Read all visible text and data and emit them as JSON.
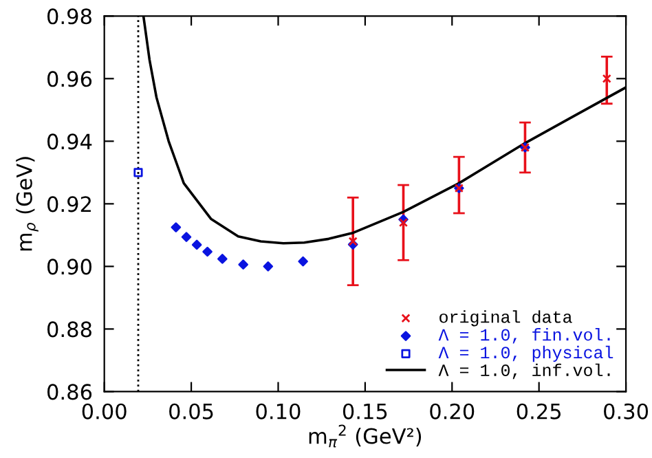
{
  "chart_data": {
    "type": "scatter",
    "xlabel": "m$_{π}$$^{2}$ (GeV²)",
    "ylabel": "m$_{ρ}$ (GeV)",
    "xlim": [
      0.0,
      0.3
    ],
    "ylim": [
      0.86,
      0.98
    ],
    "xticks": [
      {
        "value": 0.0,
        "label": "0.00"
      },
      {
        "value": 0.05,
        "label": "0.05"
      },
      {
        "value": 0.1,
        "label": "0.10"
      },
      {
        "value": 0.15,
        "label": "0.15"
      },
      {
        "value": 0.2,
        "label": "0.20"
      },
      {
        "value": 0.25,
        "label": "0.25"
      },
      {
        "value": 0.3,
        "label": "0.30"
      }
    ],
    "yticks": [
      {
        "value": 0.86,
        "label": "0.86"
      },
      {
        "value": 0.88,
        "label": "0.88"
      },
      {
        "value": 0.9,
        "label": "0.90"
      },
      {
        "value": 0.92,
        "label": "0.92"
      },
      {
        "value": 0.94,
        "label": "0.94"
      },
      {
        "value": 0.96,
        "label": "0.96"
      },
      {
        "value": 0.98,
        "label": "0.98"
      }
    ],
    "grid": false,
    "legend": "bottom right",
    "ref_lines": [
      {
        "axis": "x",
        "value": 0.0195,
        "color": "#000000",
        "line_style": "dotted"
      }
    ],
    "series": [
      {
        "name": "original data",
        "marker": "cross",
        "color": "#e8101a",
        "x": [
          0.143,
          0.172,
          0.204,
          0.242,
          0.289
        ],
        "values": [
          0.908,
          0.914,
          0.925,
          0.938,
          0.96
        ],
        "errors": [
          [
            0.894,
            0.922
          ],
          [
            0.902,
            0.926
          ],
          [
            0.917,
            0.935
          ],
          [
            0.93,
            0.946
          ],
          [
            0.952,
            0.967
          ]
        ]
      },
      {
        "name": "Λ = 1.0, fin.vol.",
        "marker": "diamond",
        "color": "#0a14e0",
        "x": [
          0.0412,
          0.0472,
          0.0532,
          0.0593,
          0.0679,
          0.0799,
          0.0942,
          0.1143,
          0.143,
          0.172,
          0.204,
          0.242
        ],
        "values": [
          0.9125,
          0.9094,
          0.9069,
          0.9047,
          0.9024,
          0.9006,
          0.9,
          0.9016,
          0.907,
          0.915,
          0.925,
          0.938
        ]
      },
      {
        "name": "Λ = 1.0, physical",
        "marker": "square",
        "color": "#0a14e0",
        "x": [
          0.0195
        ],
        "values": [
          0.93
        ]
      },
      {
        "name": "Λ = 1.0, inf.vol.",
        "type": "line",
        "color": "#000000",
        "line_style": "solid",
        "x": [
          0.0225,
          0.026,
          0.03,
          0.037,
          0.0457,
          0.0613,
          0.077,
          0.09,
          0.103,
          0.115,
          0.129,
          0.143,
          0.172,
          0.204,
          0.242,
          0.27,
          0.3
        ],
        "values": [
          0.98,
          0.966,
          0.954,
          0.94,
          0.9266,
          0.9152,
          0.9096,
          0.908,
          0.9074,
          0.9076,
          0.9088,
          0.9107,
          0.9174,
          0.9266,
          0.9394,
          0.948,
          0.9572
        ]
      }
    ]
  }
}
